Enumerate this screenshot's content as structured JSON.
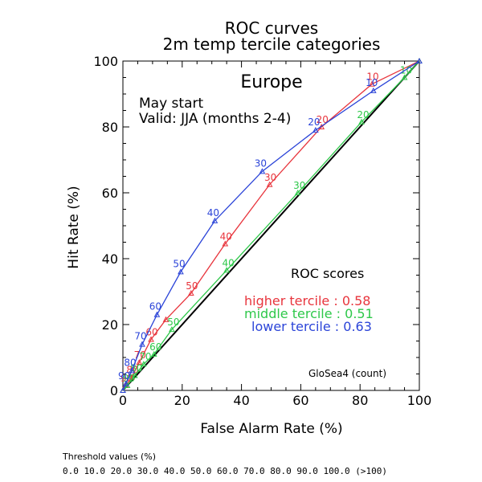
{
  "chart_data": {
    "type": "line",
    "title": "ROC curves",
    "subtitle": "2m temp tercile categories",
    "region": "Europe",
    "notes": [
      "May start",
      "Valid: JJA (months 2-4)"
    ],
    "xlabel": "False Alarm Rate (%)",
    "ylabel": "Hit Rate (%)",
    "xlim": [
      0,
      100
    ],
    "ylim": [
      0,
      100
    ],
    "x_ticks": [
      "0",
      "20",
      "40",
      "60",
      "80",
      "100"
    ],
    "y_ticks": [
      "0",
      "20",
      "40",
      "60",
      "80",
      "100"
    ],
    "grid": false,
    "diagonal": true,
    "scores_title": "ROC scores",
    "model_label": "GloSea4 (count)",
    "series": [
      {
        "name": "higher tercile",
        "score_text": "higher tercile : 0.58",
        "color": "#e8353d",
        "points": [
          {
            "x": 0,
            "y": 0,
            "label": ""
          },
          {
            "x": 1,
            "y": 1.5,
            "label": "90"
          },
          {
            "x": 3,
            "y": 4,
            "label": "80"
          },
          {
            "x": 5.5,
            "y": 8.5,
            "label": "70"
          },
          {
            "x": 9.5,
            "y": 15.5,
            "label": "60"
          },
          {
            "x": 14.5,
            "y": 21.5,
            "label": ""
          },
          {
            "x": 23,
            "y": 29.5,
            "label": "50"
          },
          {
            "x": 34.5,
            "y": 44.5,
            "label": "40"
          },
          {
            "x": 49.5,
            "y": 62.5,
            "label": "30"
          },
          {
            "x": 67,
            "y": 80,
            "label": "20"
          },
          {
            "x": 84,
            "y": 93,
            "label": "10"
          },
          {
            "x": 100,
            "y": 100,
            "label": ""
          }
        ]
      },
      {
        "name": "middle tercile",
        "score_text": "middle tercile : 0.51",
        "color": "#2ec84a",
        "points": [
          {
            "x": 0,
            "y": 0,
            "label": ""
          },
          {
            "x": 1.5,
            "y": 1.5,
            "label": "90"
          },
          {
            "x": 4,
            "y": 4.5,
            "label": "80"
          },
          {
            "x": 7,
            "y": 8,
            "label": "70"
          },
          {
            "x": 10.5,
            "y": 11,
            "label": "60"
          },
          {
            "x": 16.5,
            "y": 18.5,
            "label": "50"
          },
          {
            "x": 35,
            "y": 36.5,
            "label": "40"
          },
          {
            "x": 59,
            "y": 60,
            "label": "30"
          },
          {
            "x": 80.5,
            "y": 81.5,
            "label": "20"
          },
          {
            "x": 95,
            "y": 95,
            "label": "10"
          },
          {
            "x": 100,
            "y": 100,
            "label": ""
          }
        ]
      },
      {
        "name": "lower tercile",
        "score_text": "lower tercile : 0.63",
        "color": "#2b44d8",
        "points": [
          {
            "x": 0,
            "y": 0,
            "label": ""
          },
          {
            "x": 1,
            "y": 2,
            "label": "90"
          },
          {
            "x": 3,
            "y": 6,
            "label": "80"
          },
          {
            "x": 6.5,
            "y": 14,
            "label": "70"
          },
          {
            "x": 11.5,
            "y": 23,
            "label": "60"
          },
          {
            "x": 19.5,
            "y": 36,
            "label": "50"
          },
          {
            "x": 31,
            "y": 51.5,
            "label": "40"
          },
          {
            "x": 47,
            "y": 66.5,
            "label": "30"
          },
          {
            "x": 65,
            "y": 79,
            "label": "20"
          },
          {
            "x": 84.5,
            "y": 91,
            "label": "10"
          },
          {
            "x": 100,
            "y": 100,
            "label": ""
          }
        ]
      }
    ],
    "threshold_title": "Threshold values (%)",
    "threshold_values": "0.0 10.0 20.0 30.0 40.0 50.0 60.0 70.0 80.0 90.0 100.0 (>100)"
  }
}
